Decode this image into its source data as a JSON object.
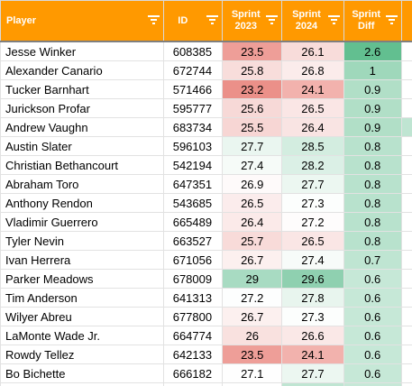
{
  "headers": {
    "player": "Player",
    "id": "ID",
    "sprint_2023": [
      "Sprint",
      "2023"
    ],
    "sprint_2024": [
      "Sprint",
      "2024"
    ],
    "sprint_diff": [
      "Sprint",
      "Diff"
    ]
  },
  "colors": {
    "header_bg": "#ff9900",
    "header_text": "#ffffff",
    "scale_low": "#e67c73",
    "scale_mid": "#ffffff",
    "scale_high": "#57bb8a"
  },
  "rows": [
    {
      "player": "Jesse Winker",
      "id": "608385",
      "s2023": "23.5",
      "s2024": "26.1",
      "diff": "2.6",
      "c2023": "#ee9e98",
      "c2024": "#f8dcda",
      "cdiff": "#62bf90",
      "cextra": "#ffffff"
    },
    {
      "player": "Alexander Canario",
      "id": "672744",
      "s2023": "25.8",
      "s2024": "26.8",
      "diff": "1",
      "c2023": "#f8dddb",
      "c2024": "#fbeceb",
      "cdiff": "#9fd8bb",
      "cextra": "#ffffff"
    },
    {
      "player": "Tucker Barnhart",
      "id": "571466",
      "s2023": "23.2",
      "s2024": "24.1",
      "diff": "0.9",
      "c2023": "#eb9089",
      "c2024": "#f2b2ad",
      "cdiff": "#b1dfc7",
      "cextra": "#ffffff"
    },
    {
      "player": "Jurickson Profar",
      "id": "595777",
      "s2023": "25.6",
      "s2024": "26.5",
      "diff": "0.9",
      "c2023": "#f7d9d7",
      "c2024": "#fae6e5",
      "cdiff": "#b1dfc7",
      "cextra": "#ffffff"
    },
    {
      "player": "Andrew Vaughn",
      "id": "683734",
      "s2023": "25.5",
      "s2024": "26.4",
      "diff": "0.9",
      "c2023": "#f7d6d4",
      "c2024": "#f9e4e3",
      "cdiff": "#b1dfc7",
      "cextra": "#bfe5d2"
    },
    {
      "player": "Austin Slater",
      "id": "596103",
      "s2023": "27.7",
      "s2024": "28.5",
      "diff": "0.8",
      "c2023": "#eaf6f0",
      "c2024": "#d3ede0",
      "cdiff": "#b8e2cd",
      "cextra": "#ffffff"
    },
    {
      "player": "Christian Bethancourt",
      "id": "542194",
      "s2023": "27.4",
      "s2024": "28.2",
      "diff": "0.8",
      "c2023": "#f6fbf8",
      "c2024": "#dbf0e6",
      "cdiff": "#b8e2cd",
      "cextra": "#ffffff"
    },
    {
      "player": "Abraham Toro",
      "id": "647351",
      "s2023": "26.9",
      "s2024": "27.7",
      "diff": "0.8",
      "c2023": "#fefafa",
      "c2024": "#ecf7f1",
      "cdiff": "#b8e2cd",
      "cextra": "#ffffff"
    },
    {
      "player": "Anthony Rendon",
      "id": "543685",
      "s2023": "26.5",
      "s2024": "27.3",
      "diff": "0.8",
      "c2023": "#fbecec",
      "c2024": "#fcfefd",
      "cdiff": "#b8e2cd",
      "cextra": "#ffffff"
    },
    {
      "player": "Vladimir Guerrero",
      "id": "665489",
      "s2023": "26.4",
      "s2024": "27.2",
      "diff": "0.8",
      "c2023": "#fbeae9",
      "c2024": "#fefcfc",
      "cdiff": "#b8e2cd",
      "cextra": "#ffffff"
    },
    {
      "player": "Tyler Nevin",
      "id": "663527",
      "s2023": "25.7",
      "s2024": "26.5",
      "diff": "0.8",
      "c2023": "#f8dbd9",
      "c2024": "#fae6e5",
      "cdiff": "#b8e2cd",
      "cextra": "#ffffff"
    },
    {
      "player": "Ivan Herrera",
      "id": "671056",
      "s2023": "26.7",
      "s2024": "27.4",
      "diff": "0.7",
      "c2023": "#fcf0ef",
      "c2024": "#f7fbf9",
      "cdiff": "#bfe5d2",
      "cextra": "#ffffff"
    },
    {
      "player": "Parker Meadows",
      "id": "678009",
      "s2023": "29",
      "s2024": "29.6",
      "diff": "0.6",
      "c2023": "#a8dbc2",
      "c2024": "#8fd0b0",
      "cdiff": "#c6e8d7",
      "cextra": "#ffffff"
    },
    {
      "player": "Tim Anderson",
      "id": "641313",
      "s2023": "27.2",
      "s2024": "27.8",
      "diff": "0.6",
      "c2023": "#fdfefe",
      "c2024": "#e8f5ee",
      "cdiff": "#c6e8d7",
      "cextra": "#ffffff"
    },
    {
      "player": "Wilyer Abreu",
      "id": "677800",
      "s2023": "26.7",
      "s2024": "27.3",
      "diff": "0.6",
      "c2023": "#fcf0ef",
      "c2024": "#fcfefd",
      "cdiff": "#c6e8d7",
      "cextra": "#ffffff"
    },
    {
      "player": "LaMonte Wade Jr.",
      "id": "664774",
      "s2023": "26",
      "s2024": "26.6",
      "diff": "0.6",
      "c2023": "#f9e1df",
      "c2024": "#fae8e7",
      "cdiff": "#c6e8d7",
      "cextra": "#ffffff"
    },
    {
      "player": "Rowdy Tellez",
      "id": "642133",
      "s2023": "23.5",
      "s2024": "24.1",
      "diff": "0.6",
      "c2023": "#ee9e98",
      "c2024": "#f2b2ad",
      "cdiff": "#c6e8d7",
      "cextra": "#ffffff"
    },
    {
      "player": "Bo Bichette",
      "id": "666182",
      "s2023": "27.1",
      "s2024": "27.7",
      "diff": "0.6",
      "c2023": "#fefefe",
      "c2024": "#ecf7f1",
      "cdiff": "#c6e8d7",
      "cextra": "#ffffff"
    },
    {
      "player": "",
      "id": "",
      "s2023": "",
      "s2024": "",
      "diff": "",
      "c2023": "#ffffff",
      "c2024": "#bfe5d2",
      "cdiff": "#c6e8d7",
      "cextra": "#ffffff"
    }
  ]
}
